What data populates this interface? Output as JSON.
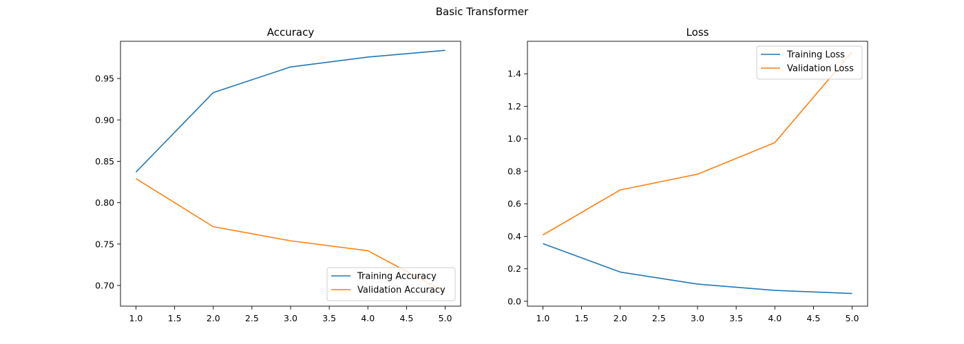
{
  "figure": {
    "suptitle": "Basic Transformer"
  },
  "chart_data": [
    {
      "type": "line",
      "title": "Accuracy",
      "xlabel": "",
      "ylabel": "",
      "x": [
        1.0,
        2.0,
        3.0,
        4.0,
        5.0
      ],
      "xlim": [
        0.8,
        5.2
      ],
      "ylim": [
        0.675,
        0.995
      ],
      "xticks": [
        1.0,
        1.5,
        2.0,
        2.5,
        3.0,
        3.5,
        4.0,
        4.5,
        5.0
      ],
      "xtick_labels": [
        "1.0",
        "1.5",
        "2.0",
        "2.5",
        "3.0",
        "3.5",
        "4.0",
        "4.5",
        "5.0"
      ],
      "yticks": [
        0.7,
        0.75,
        0.8,
        0.85,
        0.9,
        0.95
      ],
      "ytick_labels": [
        "0.70",
        "0.75",
        "0.80",
        "0.85",
        "0.90",
        "0.95"
      ],
      "grid": false,
      "legend_position": "lower right",
      "series": [
        {
          "name": "Training Accuracy",
          "color": "#1f77b4",
          "values": [
            0.837,
            0.933,
            0.964,
            0.976,
            0.984
          ]
        },
        {
          "name": "Validation Accuracy",
          "color": "#ff7f0e",
          "values": [
            0.829,
            0.771,
            0.754,
            0.742,
            0.692
          ]
        }
      ]
    },
    {
      "type": "line",
      "title": "Loss",
      "xlabel": "",
      "ylabel": "",
      "x": [
        1.0,
        2.0,
        3.0,
        4.0,
        5.0
      ],
      "xlim": [
        0.8,
        5.2
      ],
      "ylim": [
        -0.03,
        1.6
      ],
      "xticks": [
        1.0,
        1.5,
        2.0,
        2.5,
        3.0,
        3.5,
        4.0,
        4.5,
        5.0
      ],
      "xtick_labels": [
        "1.0",
        "1.5",
        "2.0",
        "2.5",
        "3.0",
        "3.5",
        "4.0",
        "4.5",
        "5.0"
      ],
      "yticks": [
        0.0,
        0.2,
        0.4,
        0.6,
        0.8,
        1.0,
        1.2,
        1.4
      ],
      "ytick_labels": [
        "0.0",
        "0.2",
        "0.4",
        "0.6",
        "0.8",
        "1.0",
        "1.2",
        "1.4"
      ],
      "grid": false,
      "legend_position": "upper right",
      "series": [
        {
          "name": "Training Loss",
          "color": "#1f77b4",
          "values": [
            0.355,
            0.18,
            0.106,
            0.067,
            0.048
          ]
        },
        {
          "name": "Validation Loss",
          "color": "#ff7f0e",
          "values": [
            0.408,
            0.685,
            0.782,
            0.977,
            1.535
          ]
        }
      ]
    }
  ]
}
